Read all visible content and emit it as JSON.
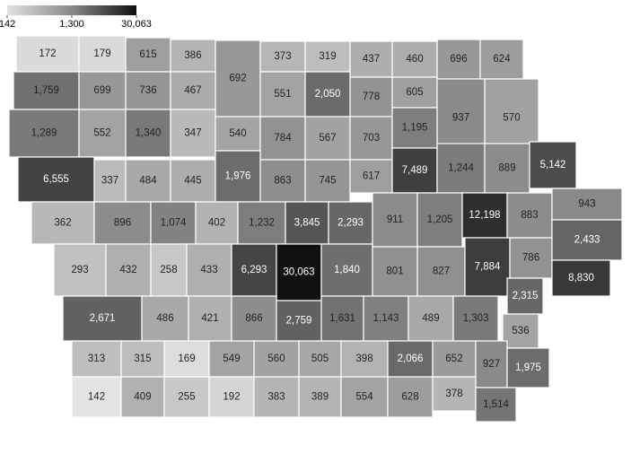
{
  "map": {
    "legend": {
      "ticks": [
        {
          "value": 142,
          "label": "142"
        },
        {
          "value": 1300,
          "label": "1,300"
        },
        {
          "value": 30063,
          "label": "30,063"
        }
      ]
    },
    "counties": [
      172,
      179,
      615,
      386,
      692,
      373,
      319,
      437,
      460,
      696,
      624,
      {
        "value": 1759,
        "label": "1,759"
      },
      699,
      736,
      467,
      551,
      {
        "value": 2050,
        "label": "2,050"
      },
      778,
      605,
      937,
      570,
      {
        "value": 1289,
        "label": "1,289"
      },
      552,
      {
        "value": 1340,
        "label": "1,340"
      },
      347,
      540,
      784,
      567,
      703,
      {
        "value": 1195,
        "label": "1,195"
      },
      {
        "value": 6555,
        "label": "6,555"
      },
      337,
      484,
      445,
      {
        "value": 1976,
        "label": "1,976"
      },
      863,
      745,
      617,
      {
        "value": 7489,
        "label": "7,489"
      },
      {
        "value": 1244,
        "label": "1,244"
      },
      889,
      {
        "value": 5142,
        "label": "5,142"
      },
      362,
      896,
      {
        "value": 1074,
        "label": "1,074"
      },
      402,
      {
        "value": 1232,
        "label": "1,232"
      },
      {
        "value": 3845,
        "label": "3,845"
      },
      {
        "value": 2293,
        "label": "2,293"
      },
      911,
      {
        "value": 1205,
        "label": "1,205"
      },
      {
        "value": 12198,
        "label": "12,198"
      },
      883,
      943,
      293,
      432,
      258,
      433,
      {
        "value": 6293,
        "label": "6,293"
      },
      {
        "value": 30063,
        "label": "30,063"
      },
      {
        "value": 1840,
        "label": "1,840"
      },
      801,
      827,
      {
        "value": 7884,
        "label": "7,884"
      },
      786,
      {
        "value": 2433,
        "label": "2,433"
      },
      {
        "value": 8830,
        "label": "8,830"
      },
      {
        "value": 2671,
        "label": "2,671"
      },
      486,
      421,
      866,
      {
        "value": 2759,
        "label": "2,759"
      },
      {
        "value": 1631,
        "label": "1,631"
      },
      {
        "value": 1143,
        "label": "1,143"
      },
      489,
      {
        "value": 1303,
        "label": "1,303"
      },
      {
        "value": 2315,
        "label": "2,315"
      },
      536,
      313,
      315,
      169,
      549,
      560,
      505,
      398,
      {
        "value": 2066,
        "label": "2,066"
      },
      652,
      927,
      {
        "value": 1975,
        "label": "1,975"
      },
      142,
      409,
      255,
      192,
      383,
      389,
      554,
      628,
      378,
      {
        "value": 1514,
        "label": "1,514"
      }
    ]
  }
}
